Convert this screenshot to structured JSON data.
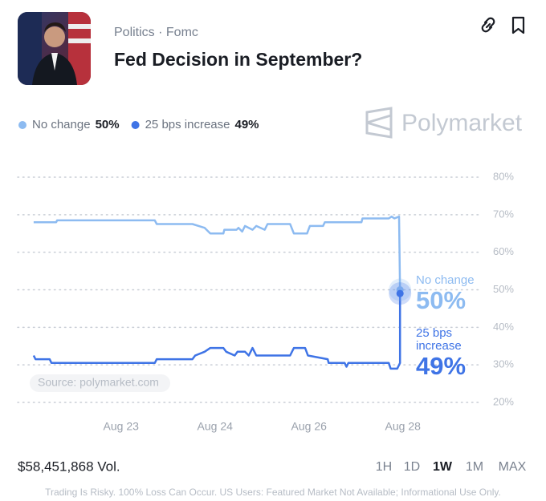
{
  "header": {
    "category": "Politics · Fomc",
    "title": "Fed Decision in September?"
  },
  "chart_data": {
    "type": "line",
    "series": [
      {
        "name": "No change",
        "color": "#8dbbf1",
        "last": 50,
        "last_label": "50%",
        "x": [
          0.07,
          0.31,
          0.32,
          1.36,
          1.38,
          1.76,
          1.89,
          1.95,
          2.09,
          2.1,
          2.23,
          2.25,
          2.29,
          2.32,
          2.4,
          2.44,
          2.53,
          2.56,
          2.8,
          2.84,
          2.98,
          3.01,
          3.15,
          3.17,
          3.56,
          3.57,
          3.85,
          3.88,
          3.91,
          3.96,
          3.97
        ],
        "values": [
          68,
          68,
          68.5,
          68.5,
          67.5,
          67.5,
          66.5,
          65,
          65,
          66,
          66,
          66.5,
          65.5,
          67,
          66,
          67,
          66,
          67.5,
          67.5,
          65,
          65,
          67,
          67,
          68,
          68,
          69,
          69,
          69.5,
          69,
          69.5,
          50
        ]
      },
      {
        "name": "25 bps increase",
        "color": "#3f74e6",
        "last": 49,
        "last_label": "49%",
        "x": [
          0.07,
          0.09,
          0.24,
          0.26,
          1.36,
          1.38,
          1.76,
          1.79,
          1.89,
          1.95,
          2.09,
          2.12,
          2.21,
          2.24,
          2.32,
          2.36,
          2.4,
          2.44,
          2.8,
          2.84,
          2.96,
          2.99,
          3.2,
          3.21,
          3.38,
          3.4,
          3.42,
          3.85,
          3.87,
          3.94,
          3.97,
          3.97
        ],
        "values": [
          32.5,
          31.5,
          31.5,
          30.5,
          30.5,
          31.5,
          31.5,
          32.5,
          33.5,
          34.5,
          34.5,
          33.5,
          32.5,
          33.5,
          33.5,
          32.5,
          34.5,
          32.5,
          32.5,
          34.5,
          34.5,
          32.5,
          31.5,
          30.5,
          30.5,
          29.5,
          30.5,
          30.5,
          29,
          29,
          30.5,
          49
        ]
      }
    ],
    "xlim": [
      -0.1,
      4.84
    ],
    "xticks": [
      {
        "value": 1,
        "label": "Aug 23"
      },
      {
        "value": 2,
        "label": "Aug 24"
      },
      {
        "value": 3,
        "label": "Aug 26"
      },
      {
        "value": 4,
        "label": "Aug 28"
      }
    ],
    "ylim": [
      20,
      80
    ],
    "yticks": [
      {
        "value": 20,
        "label": "20%"
      },
      {
        "value": 30,
        "label": "30%"
      },
      {
        "value": 40,
        "label": "40%"
      },
      {
        "value": 50,
        "label": "50%"
      },
      {
        "value": 60,
        "label": "60%"
      },
      {
        "value": 70,
        "label": "70%"
      },
      {
        "value": 80,
        "label": "80%"
      }
    ],
    "grid": true,
    "source": "Source: polymarket.com",
    "watermark": "Polymarket"
  },
  "footer": {
    "volume": "$58,451,868 Vol.",
    "ranges": [
      "1H",
      "1D",
      "1W",
      "1M",
      "MAX"
    ],
    "active_range": 2,
    "disclaimer": "Trading Is Risky. 100% Loss Can Occur. US Users: Featured Market Not Available; Informational Use Only."
  }
}
